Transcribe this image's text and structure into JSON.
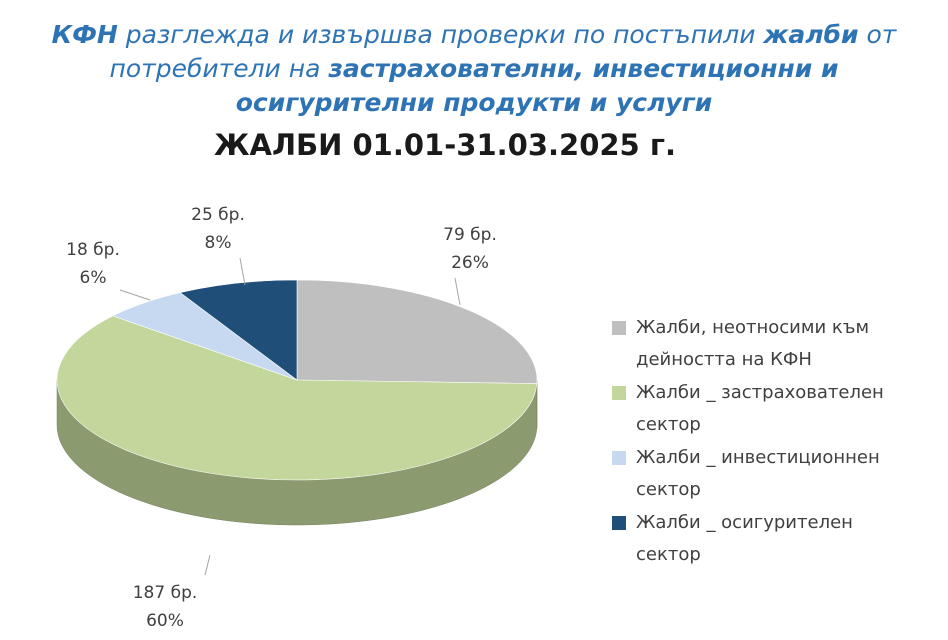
{
  "heading_parts": [
    {
      "text": "КФН",
      "bold": true
    },
    {
      "text": " разглежда и извършва проверки по постъпили ",
      "bold": false
    },
    {
      "text": "жалби",
      "bold": true
    },
    {
      "text": " от потребители на ",
      "bold": false
    },
    {
      "text": "застрахователни, инвестиционни и осигурителни продукти и услуги",
      "bold": true
    }
  ],
  "chart_data": {
    "type": "pie",
    "title": "ЖАЛБИ 01.01-31.03.2025 г.",
    "categories": [
      "Жалби, неотносими към дейността на КФН",
      "Жалби _ застрахователен сектор",
      "Жалби _ инвестиционнен сектор",
      "Жалби _ осигурителен сектор"
    ],
    "values": [
      79,
      187,
      18,
      25
    ],
    "value_labels": [
      "79 бр.",
      "187 бр.",
      "18 бр.",
      "25 бр."
    ],
    "percentages": {
      "values": [
        26,
        60,
        6,
        8
      ],
      "value_labels": [
        "26%",
        "60%",
        "6%",
        "8%"
      ]
    },
    "colors": [
      "#bfbfbf",
      "#c3d69b",
      "#c6d9f1",
      "#1f4e79"
    ],
    "legend": "right"
  }
}
